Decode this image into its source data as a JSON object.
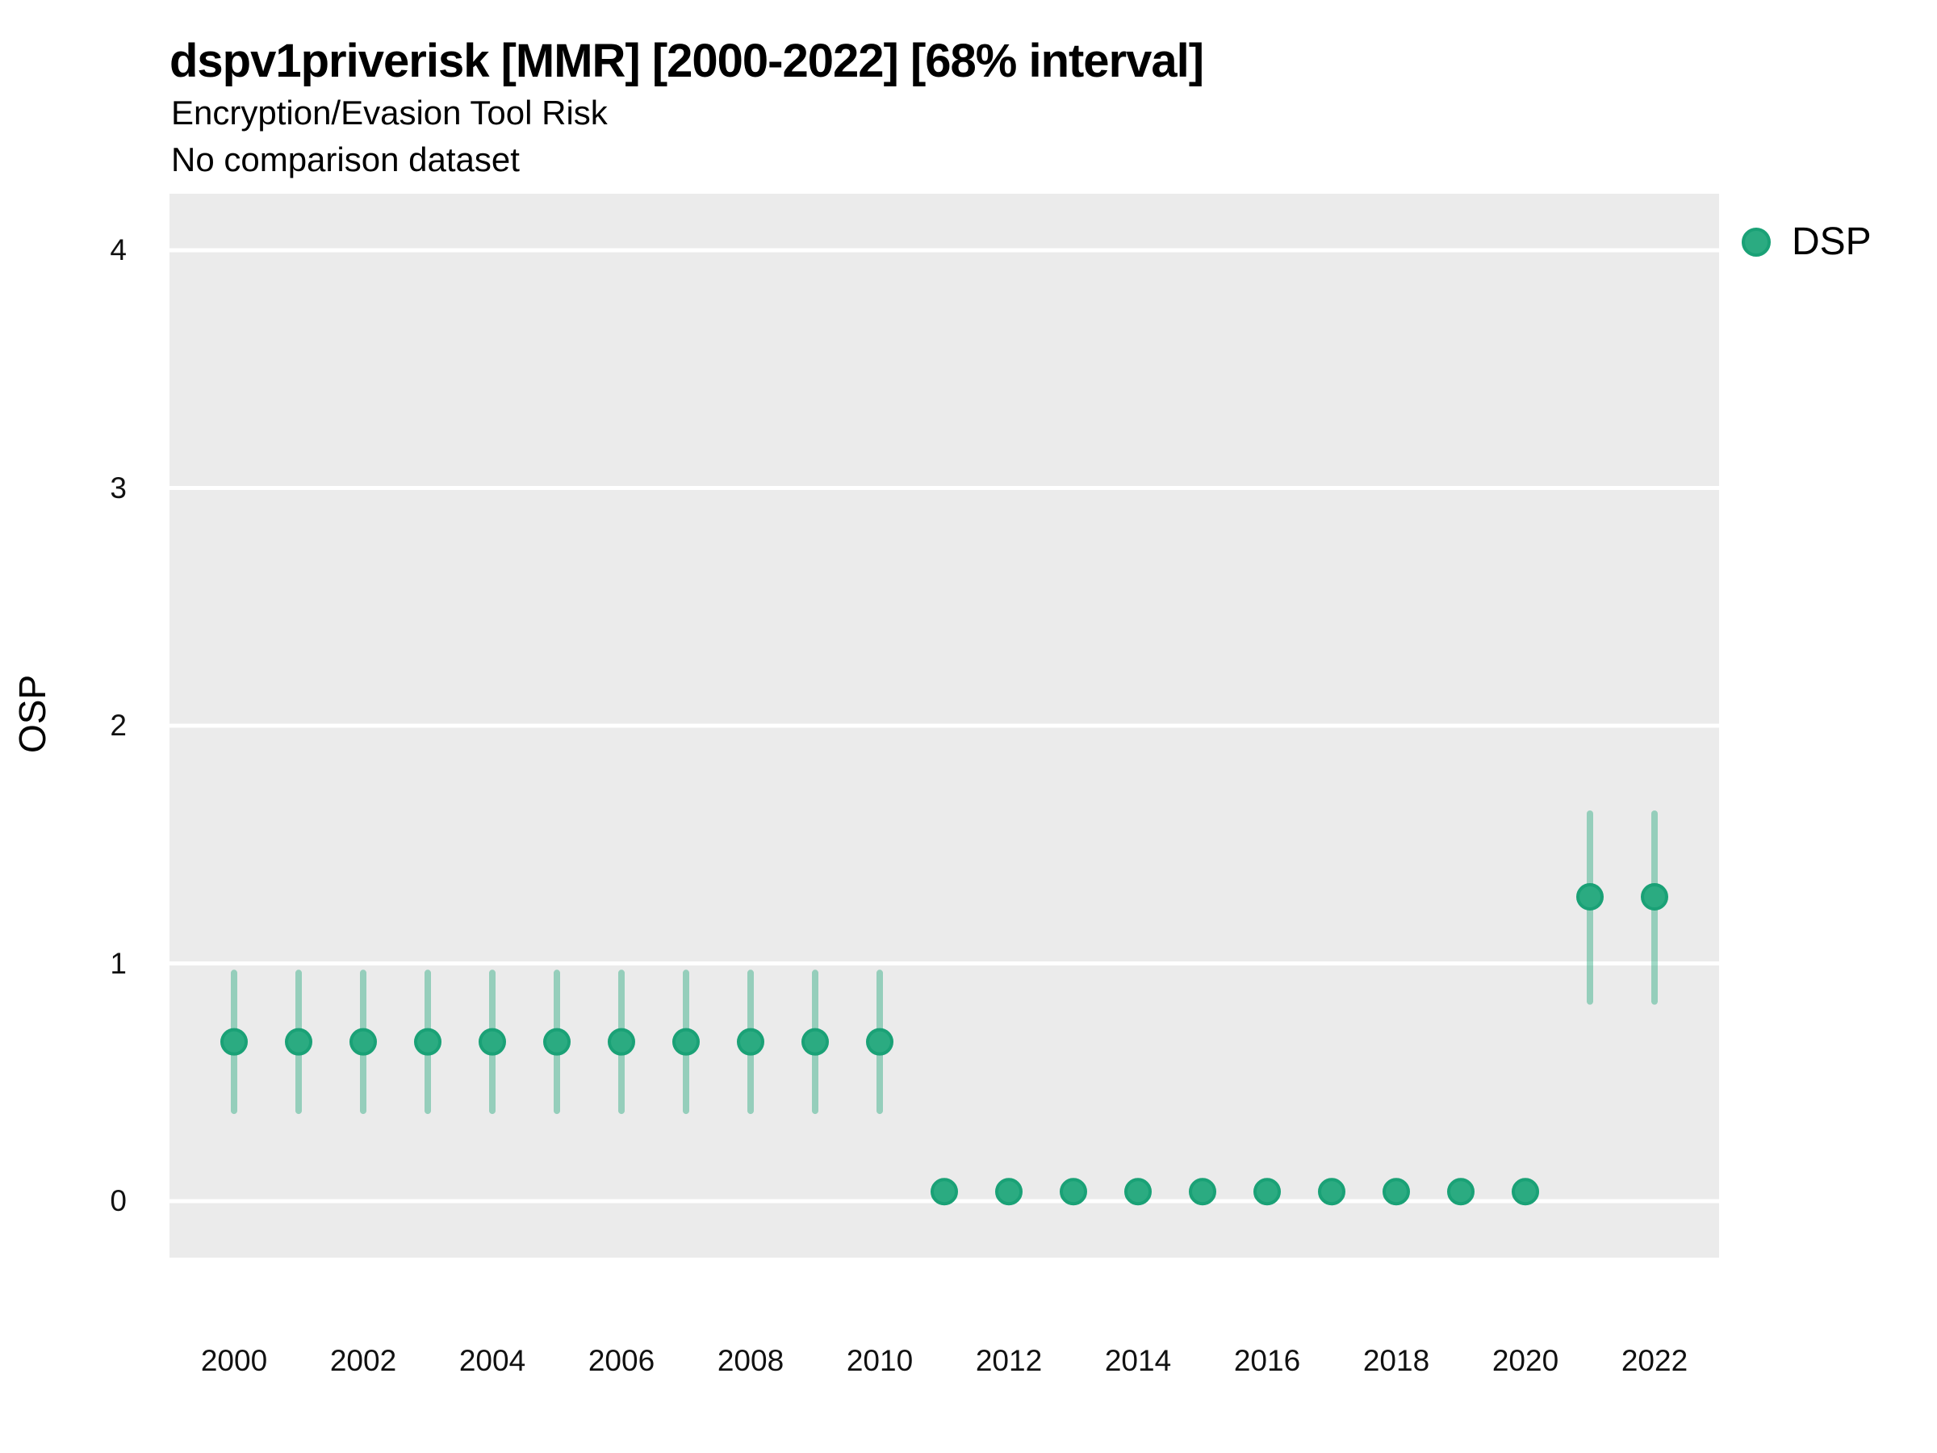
{
  "figure": {
    "title": "dspv1priverisk [MMR] [2000-2022] [68% interval]",
    "subtitle1": "Encryption/Evasion Tool Risk",
    "subtitle2": "No comparison dataset"
  },
  "axes": {
    "y_label": "OSP",
    "y_ticks": [
      0,
      1,
      2,
      3,
      4
    ],
    "x_tick_labels": [
      2000,
      2002,
      2004,
      2006,
      2008,
      2010,
      2012,
      2014,
      2016,
      2018,
      2020,
      2022
    ]
  },
  "legend": {
    "items": [
      {
        "label": "DSP",
        "color": "#2bab81",
        "edge_color": "#1aa176"
      }
    ]
  },
  "chart_data": {
    "type": "scatter",
    "subtype": "pointrange",
    "title": "dspv1priverisk [MMR] [2000-2022] [68% interval]",
    "subtitle": "Encryption/Evasion Tool Risk",
    "note": "No comparison dataset",
    "xlabel": "",
    "ylabel": "OSP",
    "ylim": [
      -0.24,
      4.24
    ],
    "x": [
      2000,
      2001,
      2002,
      2003,
      2004,
      2005,
      2006,
      2007,
      2008,
      2009,
      2010,
      2011,
      2012,
      2013,
      2014,
      2015,
      2016,
      2017,
      2018,
      2019,
      2020,
      2021,
      2022
    ],
    "series": [
      {
        "name": "DSP",
        "values": [
          0.67,
          0.67,
          0.67,
          0.67,
          0.67,
          0.67,
          0.67,
          0.67,
          0.67,
          0.67,
          0.67,
          0.04,
          0.04,
          0.04,
          0.04,
          0.04,
          0.04,
          0.04,
          0.04,
          0.04,
          0.04,
          1.28,
          1.28
        ],
        "lower": [
          0.38,
          0.38,
          0.38,
          0.38,
          0.38,
          0.38,
          0.38,
          0.38,
          0.38,
          0.38,
          0.38,
          0.04,
          0.04,
          0.04,
          0.04,
          0.04,
          0.04,
          0.04,
          0.04,
          0.04,
          0.04,
          0.84,
          0.84
        ],
        "upper": [
          0.96,
          0.96,
          0.96,
          0.96,
          0.96,
          0.96,
          0.96,
          0.96,
          0.96,
          0.96,
          0.96,
          0.04,
          0.04,
          0.04,
          0.04,
          0.04,
          0.04,
          0.04,
          0.04,
          0.04,
          0.04,
          1.63,
          1.63
        ]
      }
    ],
    "interval_label": "68% interval",
    "grid": "major-horizontal-only",
    "legend_position": "right",
    "style": {
      "marker_fill": "#2bab81",
      "marker_edge": "#1aa176",
      "bar_color": "rgba(44,171,129,0.45)",
      "panel_bg": "#ebebeb",
      "grid_color": "#ffffff"
    }
  }
}
